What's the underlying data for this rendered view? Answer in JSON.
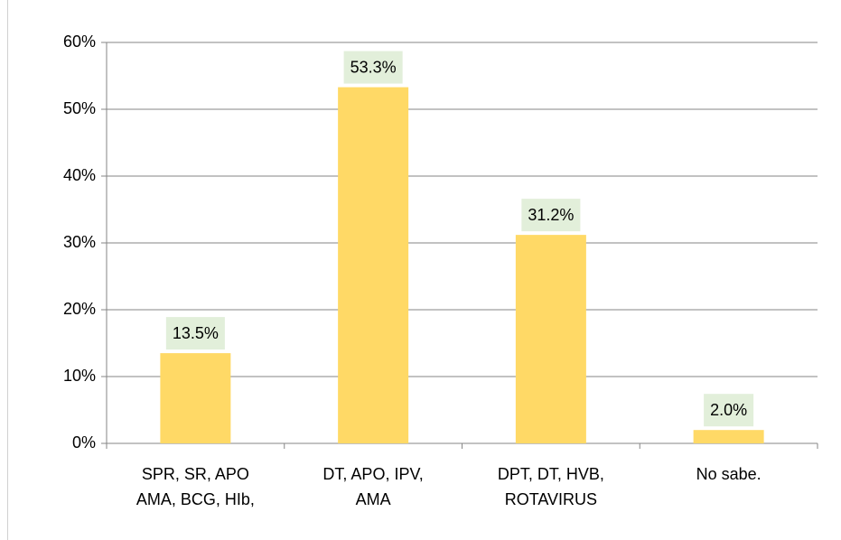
{
  "chart_data": {
    "type": "bar",
    "categories": [
      "SPR, SR, APO AMA, BCG, HIb,",
      "DT, APO, IPV, AMA",
      "DPT, DT, HVB, ROTAVIRUS",
      "No sabe."
    ],
    "values": [
      13.5,
      53.3,
      31.2,
      2.0
    ],
    "value_labels": [
      "13.5%",
      "53.3%",
      "31.2%",
      "2.0%"
    ],
    "color": "#ffd966",
    "ylim": [
      0,
      60
    ],
    "yticks": [
      {
        "value": 0,
        "label": "0%"
      },
      {
        "value": 10,
        "label": "10%"
      },
      {
        "value": 20,
        "label": "20%"
      },
      {
        "value": 30,
        "label": "30%"
      },
      {
        "value": 40,
        "label": "40%"
      },
      {
        "value": 50,
        "label": "50%"
      },
      {
        "value": 60,
        "label": "60%"
      }
    ],
    "grid": true
  }
}
